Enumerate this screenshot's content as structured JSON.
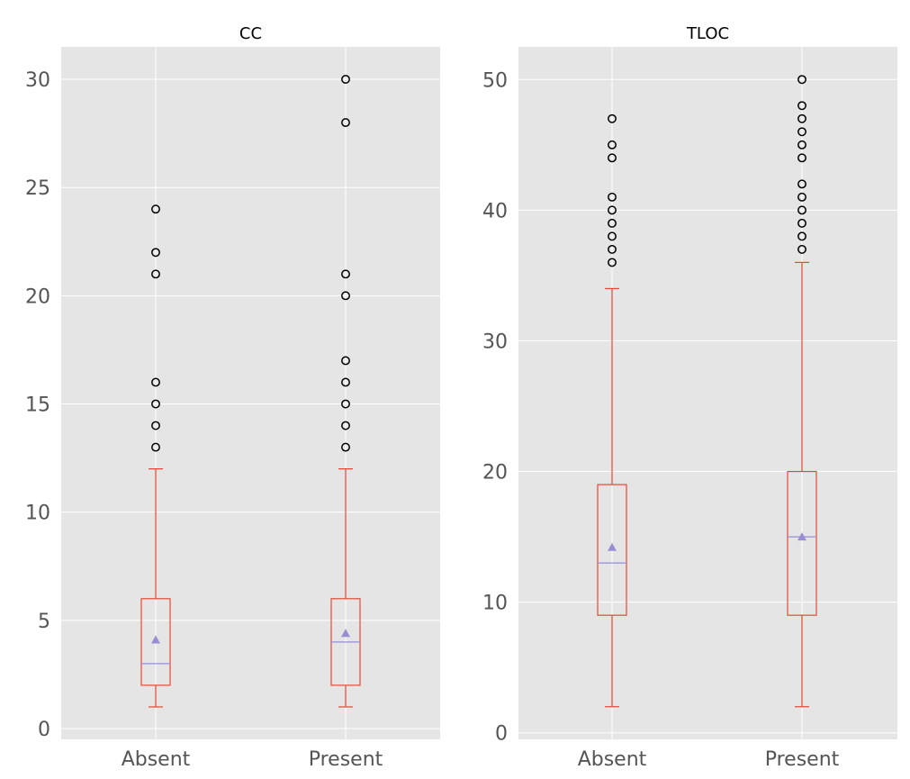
{
  "colors": {
    "panel_bg": "#E5E5E5",
    "grid": "#FFFFFF",
    "box": "#E24A33",
    "mean_median": "#988ED5",
    "flier": "#000000",
    "tick_text": "#555555"
  },
  "chart_data": [
    {
      "type": "box",
      "title": "CC",
      "categories": [
        "Absent",
        "Present"
      ],
      "ylim": [
        -0.5,
        31.5
      ],
      "yticks": [
        0,
        5,
        10,
        15,
        20,
        25,
        30
      ],
      "boxes": [
        {
          "category": "Absent",
          "whisker_low": 1,
          "q1": 2,
          "median": 3,
          "q3": 6,
          "whisker_high": 12,
          "mean": 4.1,
          "outliers": [
            13,
            14,
            15,
            16,
            21,
            22,
            24
          ]
        },
        {
          "category": "Present",
          "whisker_low": 1,
          "q1": 2,
          "median": 4,
          "q3": 6,
          "whisker_high": 12,
          "mean": 4.4,
          "outliers": [
            13,
            14,
            15,
            16,
            17,
            20,
            21,
            28,
            30
          ]
        }
      ]
    },
    {
      "type": "box",
      "title": "TLOC",
      "categories": [
        "Absent",
        "Present"
      ],
      "ylim": [
        -0.5,
        52.5
      ],
      "yticks": [
        0,
        10,
        20,
        30,
        40,
        50
      ],
      "boxes": [
        {
          "category": "Absent",
          "whisker_low": 2,
          "q1": 9,
          "median": 13,
          "q3": 19,
          "whisker_high": 34,
          "mean": 14.2,
          "outliers": [
            36,
            37,
            38,
            39,
            40,
            41,
            44,
            45,
            47
          ]
        },
        {
          "category": "Present",
          "whisker_low": 2,
          "q1": 9,
          "median": 15,
          "q3": 20,
          "whisker_high": 36,
          "mean": 15.0,
          "outliers": [
            37,
            38,
            39,
            40,
            41,
            42,
            44,
            45,
            46,
            47,
            48,
            50
          ]
        }
      ]
    }
  ]
}
